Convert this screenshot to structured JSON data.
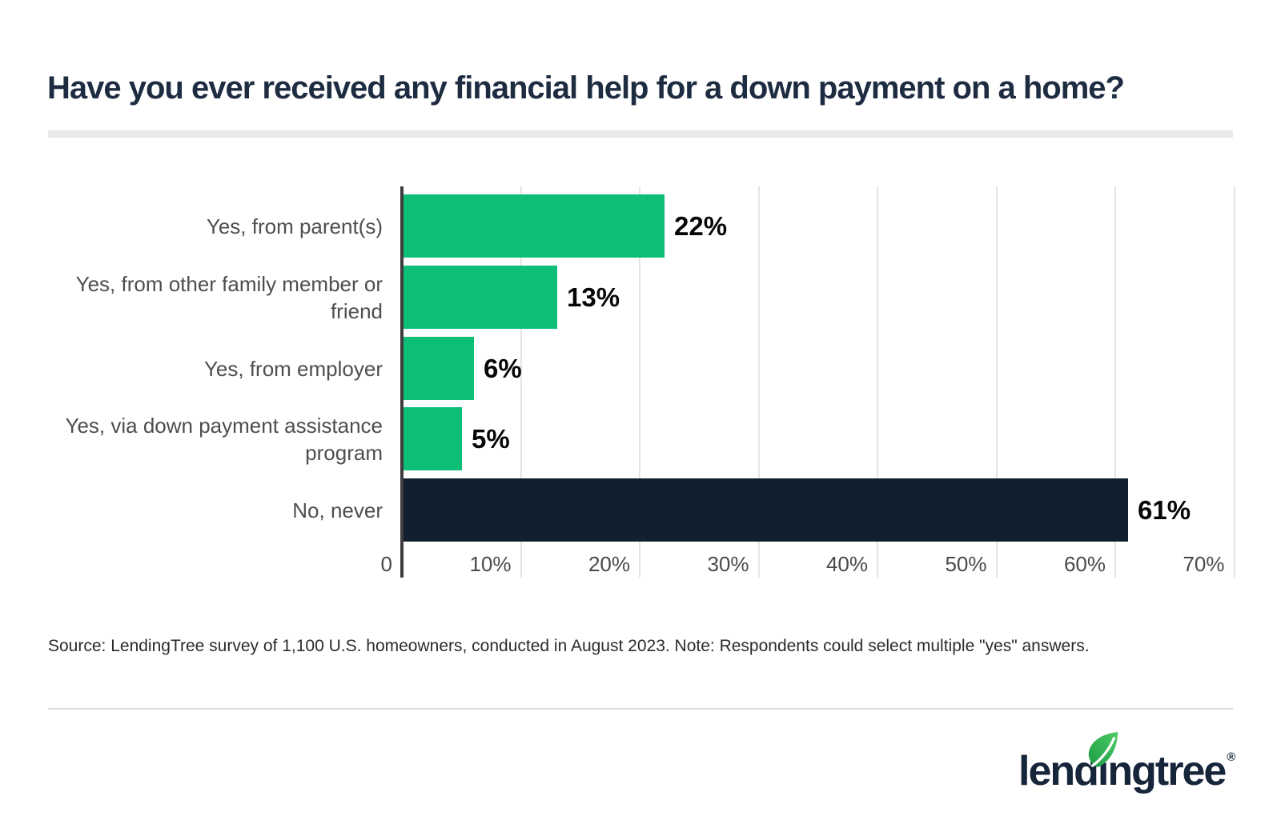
{
  "title": "Have you ever received any financial help for a down payment on a home?",
  "source_note": "Source: LendingTree survey of 1,100 U.S. homeowners, conducted in August 2023. Note: Respondents could select multiple \"yes\" answers.",
  "logo": {
    "part1": "lend",
    "i": "ı",
    "part2": "ngtree",
    "registered": "®",
    "leaf_icon": "leaf-icon"
  },
  "colors": {
    "bar_green": "#0dbe76",
    "bar_navy": "#121f2e",
    "title_navy": "#1e2c42",
    "label_gray": "#4e4e4e",
    "value_black": "#060606",
    "gridline": "#e4e4e4",
    "axis": "#3e3e3e",
    "title_rule": "#e9e9e9",
    "footer_rule": "#dcdcdc",
    "logo_navy": "#16253a",
    "leaf_green_dark": "#1e9c44",
    "leaf_green_light": "#4ecb66"
  },
  "chart_data": {
    "type": "bar",
    "orientation": "horizontal",
    "title": "Have you ever received any financial help for a down payment on a home?",
    "categories": [
      "Yes, from parent(s)",
      "Yes, from other family member or friend",
      "Yes, from employer",
      "Yes, via down payment assistance program",
      "No, never"
    ],
    "values": [
      22,
      13,
      6,
      5,
      61
    ],
    "unit": "%",
    "xlim": [
      0,
      70
    ],
    "grid": true,
    "legend": false,
    "bars": [
      {
        "label": "Yes, from parent(s)",
        "display_label": "Yes, from parent(s)",
        "value": 22,
        "value_label": "22%",
        "color": "#0dbe76"
      },
      {
        "label": "Yes, from other family member or friend",
        "display_label": "Yes, from other family member or\nfriend",
        "value": 13,
        "value_label": "13%",
        "color": "#0dbe76"
      },
      {
        "label": "Yes, from employer",
        "display_label": "Yes, from employer",
        "value": 6,
        "value_label": "6%",
        "color": "#0dbe76"
      },
      {
        "label": "Yes, via down payment assistance program",
        "display_label": "Yes, via down payment assistance\nprogram",
        "value": 5,
        "value_label": "5%",
        "color": "#0dbe76"
      },
      {
        "label": "No, never",
        "display_label": "No, never",
        "value": 61,
        "value_label": "61%",
        "color": "#121f2e"
      }
    ],
    "x_ticks": [
      {
        "value": 0,
        "label": "0"
      },
      {
        "value": 10,
        "label": "10%"
      },
      {
        "value": 20,
        "label": "20%"
      },
      {
        "value": 30,
        "label": "30%"
      },
      {
        "value": 40,
        "label": "40%"
      },
      {
        "value": 50,
        "label": "50%"
      },
      {
        "value": 60,
        "label": "60%"
      },
      {
        "value": 70,
        "label": "70%"
      }
    ]
  }
}
